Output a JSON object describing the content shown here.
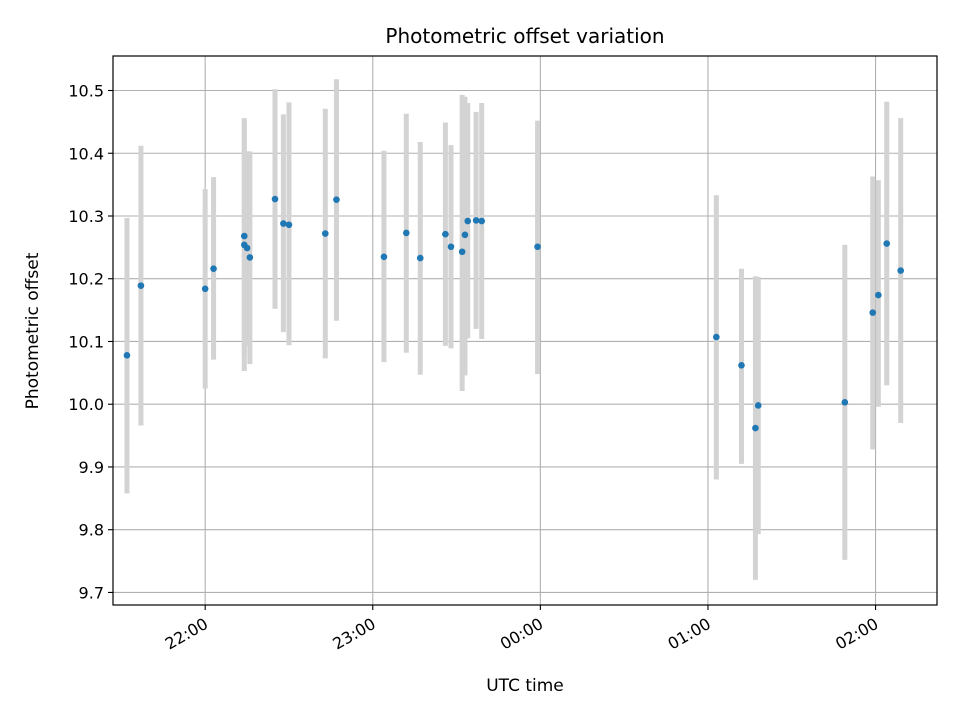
{
  "chart_data": {
    "type": "scatter",
    "title": "Photometric offset variation",
    "xlabel": "UTC time",
    "ylabel": "Photometric offset",
    "x_tick_labels": [
      "22:00",
      "23:00",
      "00:00",
      "01:00",
      "02:00"
    ],
    "x_ticks": [
      "22:00",
      "23:00",
      "24:00",
      "25:00",
      "26:00"
    ],
    "xlim": [
      "21:27",
      "26:22"
    ],
    "ylim": [
      9.68,
      10.555
    ],
    "y_ticks": [
      9.7,
      9.8,
      9.9,
      10.0,
      10.1,
      10.2,
      10.3,
      10.4,
      10.5
    ],
    "grid": true,
    "errorbar_color": "#d3d3d3",
    "marker_color": "#1f77b4",
    "points": [
      {
        "x": "21:32",
        "y": 10.078,
        "yerr_low": 9.858,
        "yerr_high": 10.297
      },
      {
        "x": "21:37",
        "y": 10.189,
        "yerr_low": 9.966,
        "yerr_high": 10.412
      },
      {
        "x": "22:00",
        "y": 10.184,
        "yerr_low": 10.025,
        "yerr_high": 10.343
      },
      {
        "x": "22:03",
        "y": 10.216,
        "yerr_low": 10.071,
        "yerr_high": 10.362
      },
      {
        "x": "22:14",
        "y": 10.254,
        "yerr_low": 10.053,
        "yerr_high": 10.456
      },
      {
        "x": "22:14",
        "y": 10.268,
        "yerr_low": 10.079,
        "yerr_high": 10.453
      },
      {
        "x": "22:15",
        "y": 10.249,
        "yerr_low": 10.093,
        "yerr_high": 10.403
      },
      {
        "x": "22:16",
        "y": 10.234,
        "yerr_low": 10.064,
        "yerr_high": 10.403
      },
      {
        "x": "22:25",
        "y": 10.327,
        "yerr_low": 10.152,
        "yerr_high": 10.502
      },
      {
        "x": "22:28",
        "y": 10.288,
        "yerr_low": 10.115,
        "yerr_high": 10.462
      },
      {
        "x": "22:30",
        "y": 10.286,
        "yerr_low": 10.094,
        "yerr_high": 10.481
      },
      {
        "x": "22:43",
        "y": 10.272,
        "yerr_low": 10.073,
        "yerr_high": 10.471
      },
      {
        "x": "22:47",
        "y": 10.326,
        "yerr_low": 10.133,
        "yerr_high": 10.518
      },
      {
        "x": "23:04",
        "y": 10.235,
        "yerr_low": 10.067,
        "yerr_high": 10.404
      },
      {
        "x": "23:12",
        "y": 10.273,
        "yerr_low": 10.082,
        "yerr_high": 10.463
      },
      {
        "x": "23:17",
        "y": 10.233,
        "yerr_low": 10.047,
        "yerr_high": 10.418
      },
      {
        "x": "23:26",
        "y": 10.271,
        "yerr_low": 10.093,
        "yerr_high": 10.449
      },
      {
        "x": "23:28",
        "y": 10.251,
        "yerr_low": 10.089,
        "yerr_high": 10.413
      },
      {
        "x": "23:32",
        "y": 10.243,
        "yerr_low": 10.021,
        "yerr_high": 10.493
      },
      {
        "x": "23:33",
        "y": 10.27,
        "yerr_low": 10.046,
        "yerr_high": 10.49
      },
      {
        "x": "23:34",
        "y": 10.292,
        "yerr_low": 10.105,
        "yerr_high": 10.48
      },
      {
        "x": "23:37",
        "y": 10.293,
        "yerr_low": 10.12,
        "yerr_high": 10.466
      },
      {
        "x": "23:39",
        "y": 10.292,
        "yerr_low": 10.104,
        "yerr_high": 10.48
      },
      {
        "x": "23:59",
        "y": 10.251,
        "yerr_low": 10.048,
        "yerr_high": 10.452
      },
      {
        "x": "25:03",
        "y": 10.107,
        "yerr_low": 9.88,
        "yerr_high": 10.333
      },
      {
        "x": "25:12",
        "y": 10.062,
        "yerr_low": 9.905,
        "yerr_high": 10.216
      },
      {
        "x": "25:17",
        "y": 9.962,
        "yerr_low": 9.72,
        "yerr_high": 10.204
      },
      {
        "x": "25:18",
        "y": 9.998,
        "yerr_low": 9.793,
        "yerr_high": 10.203
      },
      {
        "x": "25:49",
        "y": 10.003,
        "yerr_low": 9.752,
        "yerr_high": 10.254
      },
      {
        "x": "25:59",
        "y": 10.146,
        "yerr_low": 9.928,
        "yerr_high": 10.363
      },
      {
        "x": "26:01",
        "y": 10.174,
        "yerr_low": 9.996,
        "yerr_high": 10.357
      },
      {
        "x": "26:04",
        "y": 10.256,
        "yerr_low": 10.03,
        "yerr_high": 10.482
      },
      {
        "x": "26:09",
        "y": 10.213,
        "yerr_low": 9.97,
        "yerr_high": 10.456
      }
    ]
  }
}
